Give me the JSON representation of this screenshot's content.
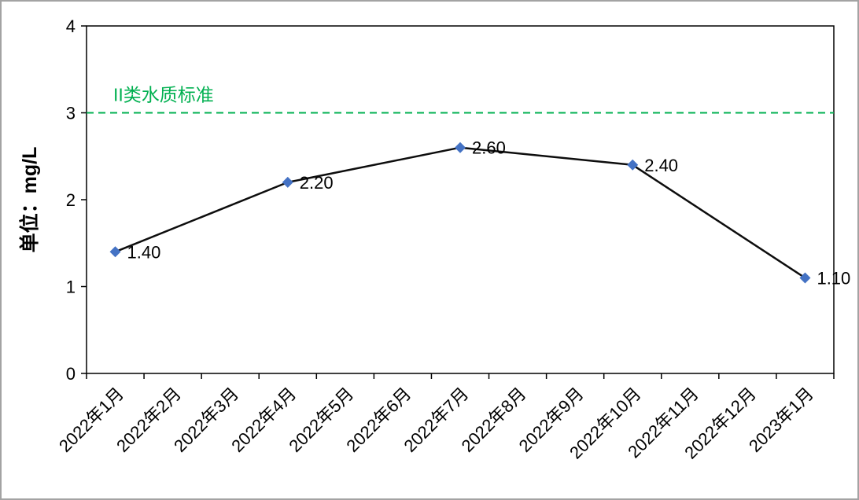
{
  "frame": {
    "background": "#ffffff",
    "border_color": "#a3a3a3"
  },
  "chart_data": {
    "type": "line",
    "title": "",
    "ylabel": "单位：mg/L",
    "xlabel": "",
    "ylim": [
      0,
      4
    ],
    "yticks": [
      0,
      1,
      2,
      3,
      4
    ],
    "grid": false,
    "legend": "none",
    "categories": [
      "2022年1月",
      "2022年2月",
      "2022年3月",
      "2022年4月",
      "2022年5月",
      "2022年6月",
      "2022年7月",
      "2022年8月",
      "2022年9月",
      "2022年10月",
      "2022年11月",
      "2022年12月",
      "2023年1月"
    ],
    "series": [
      {
        "name": "",
        "line_color": "#0d0d0d",
        "marker": "diamond",
        "marker_color": "#4472c4",
        "points": [
          {
            "category": "2022年1月",
            "i": 0,
            "value": 1.4,
            "label": "1.40"
          },
          {
            "category": "2022年4月",
            "i": 3,
            "value": 2.2,
            "label": "2.20"
          },
          {
            "category": "2022年7月",
            "i": 6,
            "value": 2.6,
            "label": "2.60"
          },
          {
            "category": "2022年10月",
            "i": 9,
            "value": 2.4,
            "label": "2.40"
          },
          {
            "category": "2023年1月",
            "i": 12,
            "value": 1.1,
            "label": "1.10"
          }
        ]
      }
    ],
    "reference_line": {
      "value": 3,
      "label": "II类水质标准",
      "color": "#00b050",
      "style": "dashed"
    },
    "axis_color": "#000000",
    "text_color": "#000000"
  }
}
